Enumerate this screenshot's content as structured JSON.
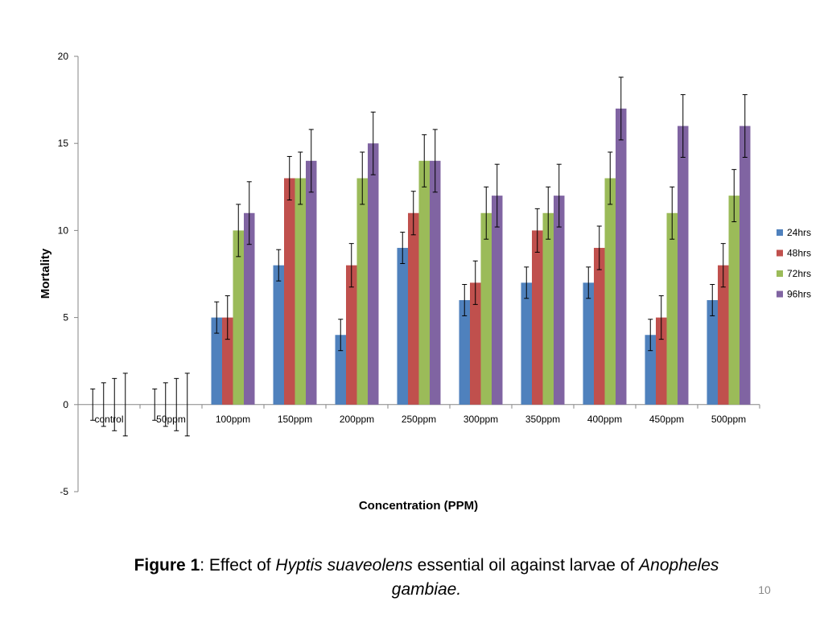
{
  "chart_data": {
    "type": "bar",
    "title": "",
    "xlabel": "Concentration (PPM)",
    "ylabel": "Mortality",
    "ylim": [
      -5,
      20
    ],
    "yticks": [
      -5,
      0,
      5,
      10,
      15,
      20
    ],
    "categories": [
      "control",
      "50ppm",
      "100ppm",
      "150ppm",
      "200ppm",
      "250ppm",
      "300ppm",
      "350ppm",
      "400ppm",
      "450ppm",
      "500ppm"
    ],
    "series": [
      {
        "name": "24hrs",
        "color": "#4F81BD",
        "values": [
          0,
          0,
          5,
          8,
          4,
          9,
          6,
          7,
          7,
          4,
          6
        ],
        "errors": [
          0.9,
          0.9,
          0.9,
          0.9,
          0.9,
          0.9,
          0.9,
          0.9,
          0.9,
          0.9,
          0.9
        ]
      },
      {
        "name": "48hrs",
        "color": "#C0504D",
        "values": [
          0,
          0,
          5,
          13,
          8,
          11,
          7,
          10,
          9,
          5,
          8
        ],
        "errors": [
          1.25,
          1.25,
          1.25,
          1.25,
          1.25,
          1.25,
          1.25,
          1.25,
          1.25,
          1.25,
          1.25
        ]
      },
      {
        "name": "72hrs",
        "color": "#9BBB59",
        "values": [
          0,
          0,
          10,
          13,
          13,
          14,
          11,
          11,
          13,
          11,
          12
        ],
        "errors": [
          1.5,
          1.5,
          1.5,
          1.5,
          1.5,
          1.5,
          1.5,
          1.5,
          1.5,
          1.5,
          1.5
        ]
      },
      {
        "name": "96hrs",
        "color": "#8064A2",
        "values": [
          0,
          0,
          11,
          14,
          15,
          14,
          12,
          12,
          17,
          16,
          16
        ],
        "errors": [
          1.8,
          1.8,
          1.8,
          1.8,
          1.8,
          1.8,
          1.8,
          1.8,
          1.8,
          1.8,
          1.8
        ]
      }
    ],
    "legend_position": "right"
  },
  "caption": {
    "figure_label": "Figure 1",
    "sep": ":  Effect of ",
    "species": "Hyptis suaveolens",
    "middle": " essential oil against  larvae of ",
    "genus": "Anopheles",
    "species2": "gambiae."
  },
  "page_number": "10"
}
